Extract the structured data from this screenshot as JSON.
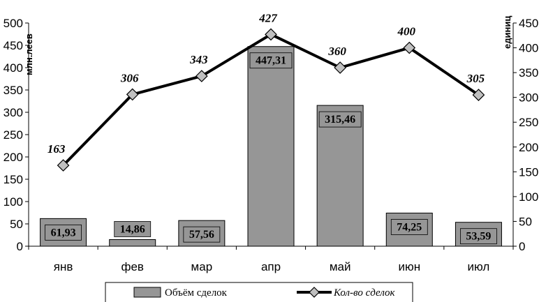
{
  "chart_data": {
    "type": "bar",
    "title": "",
    "categories": [
      "янв",
      "фев",
      "мар",
      "апр",
      "май",
      "июн",
      "июл"
    ],
    "left_axis": {
      "label": "млн.леев",
      "range": [
        0,
        500
      ],
      "ticks": [
        "0",
        "50",
        "100",
        "150",
        "200",
        "250",
        "300",
        "350",
        "400",
        "450",
        "500"
      ]
    },
    "right_axis": {
      "label": "единиц",
      "range": [
        0,
        450
      ],
      "ticks": [
        "0",
        "50",
        "100",
        "150",
        "200",
        "250",
        "300",
        "350",
        "400",
        "450"
      ]
    },
    "series": [
      {
        "name": "Объём сделок",
        "type": "bar",
        "axis": "left",
        "color": "#969696",
        "values": [
          61.93,
          14.86,
          57.56,
          447.31,
          315.46,
          74.25,
          53.59
        ],
        "labels": [
          "61,93",
          "14,86",
          "57,56",
          "447,31",
          "315,46",
          "74,25",
          "53,59"
        ]
      },
      {
        "name": "Кол-во сделок",
        "type": "line",
        "axis": "right",
        "color": "#000000",
        "marker_color": "#c0c0c0",
        "values": [
          163,
          306,
          343,
          427,
          360,
          400,
          305
        ],
        "labels": [
          "163",
          "306",
          "343",
          "427",
          "360",
          "400",
          "305"
        ]
      }
    ],
    "grid": false,
    "legend_position": "bottom"
  }
}
